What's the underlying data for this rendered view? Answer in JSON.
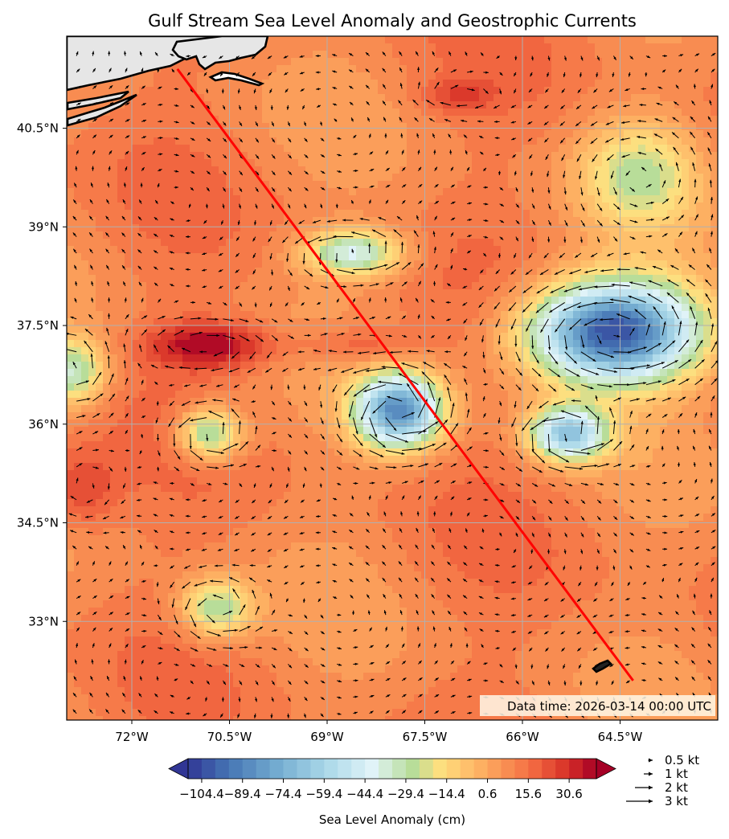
{
  "title": "Gulf Stream Sea Level Anomaly and Geostrophic Currents",
  "timestamp": "Data time: 2026-03-14 00:00 UTC",
  "map": {
    "lon_range": [
      -73.0,
      -63.0
    ],
    "lat_range": [
      31.5,
      41.9
    ],
    "x_ticks": [
      {
        "value": -72.0,
        "label": "72°W"
      },
      {
        "value": -70.5,
        "label": "70.5°W"
      },
      {
        "value": -69.0,
        "label": "69°W"
      },
      {
        "value": -67.5,
        "label": "67.5°W"
      },
      {
        "value": -66.0,
        "label": "66°W"
      },
      {
        "value": -64.5,
        "label": "64.5°W"
      }
    ],
    "y_ticks": [
      {
        "value": 40.5,
        "label": "40.5°N"
      },
      {
        "value": 39.0,
        "label": "39°N"
      },
      {
        "value": 37.5,
        "label": "37.5°N"
      },
      {
        "value": 36.0,
        "label": "36°N"
      },
      {
        "value": 34.5,
        "label": "34.5°N"
      },
      {
        "value": 33.0,
        "label": "33°N"
      }
    ],
    "track": {
      "name": "transect",
      "start": [
        -71.3,
        41.4
      ],
      "end": [
        -64.3,
        32.1
      ],
      "color": "#ff0000"
    }
  },
  "colorbar": {
    "label": "Sea Level Anomaly (cm)",
    "min": -109.4,
    "max": 40.6,
    "step": 5,
    "tick_labels": [
      {
        "value": -104.4,
        "label": "−104.4"
      },
      {
        "value": -89.4,
        "label": "−89.4"
      },
      {
        "value": -74.4,
        "label": "−74.4"
      },
      {
        "value": -59.4,
        "label": "−59.4"
      },
      {
        "value": -44.4,
        "label": "−44.4"
      },
      {
        "value": -29.4,
        "label": "−29.4"
      },
      {
        "value": -14.4,
        "label": "−14.4"
      },
      {
        "value": 0.6,
        "label": "0.6"
      },
      {
        "value": 15.6,
        "label": "15.6"
      },
      {
        "value": 30.6,
        "label": "30.6"
      }
    ]
  },
  "vector_legend": [
    {
      "speed_kt": 0.5,
      "label": "0.5 kt"
    },
    {
      "speed_kt": 1,
      "label": "1 kt"
    },
    {
      "speed_kt": 2,
      "label": "2 kt"
    },
    {
      "speed_kt": 3,
      "label": "3 kt"
    }
  ],
  "colors": {
    "land": "#e6e6e6",
    "coast": "#000000",
    "grid": "#b0b0b0",
    "stamp_bg": "#fff8e8"
  },
  "features": {
    "eddies": [
      {
        "name": "cold-core-ne",
        "lon": -64.6,
        "lat": 37.4,
        "anomaly_cm": -105,
        "rlon": 1.3,
        "rlat": 0.75
      },
      {
        "name": "cold-core-center",
        "lon": -67.9,
        "lat": 36.2,
        "anomaly_cm": -85,
        "rlon": 0.65,
        "rlat": 0.55
      },
      {
        "name": "cold-core-se",
        "lon": -65.3,
        "lat": 35.85,
        "anomaly_cm": -65,
        "rlon": 0.6,
        "rlat": 0.4
      },
      {
        "name": "cold-core-w",
        "lon": -70.8,
        "lat": 35.85,
        "anomaly_cm": -38,
        "rlon": 0.5,
        "rlat": 0.4
      },
      {
        "name": "cold-far-west",
        "lon": -72.9,
        "lat": 36.8,
        "anomaly_cm": -35,
        "rlon": 0.5,
        "rlat": 0.5
      },
      {
        "name": "cold-north-slope",
        "lon": -68.6,
        "lat": 38.6,
        "anomaly_cm": -40,
        "rlon": 0.75,
        "rlat": 0.35
      },
      {
        "name": "cold-south",
        "lon": -70.7,
        "lat": 33.2,
        "anomaly_cm": -30,
        "rlon": 0.55,
        "rlat": 0.45
      },
      {
        "name": "warm-core-jet",
        "lon": -70.8,
        "lat": 37.2,
        "anomaly_cm": 42,
        "rlon": 0.9,
        "rlat": 0.35
      },
      {
        "name": "warm-jet-east",
        "lon": -68.5,
        "lat": 37.2,
        "anomaly_cm": 25,
        "rlon": 0.95,
        "rlat": 0.3
      },
      {
        "name": "warm-far-west",
        "lon": -72.8,
        "lat": 35.0,
        "anomaly_cm": 28,
        "rlon": 0.6,
        "rlat": 0.6
      },
      {
        "name": "warm-north",
        "lon": -67.0,
        "lat": 41.0,
        "anomaly_cm": 24,
        "rlon": 0.55,
        "rlat": 0.25
      },
      {
        "name": "cool-northeast",
        "lon": -64.2,
        "lat": 39.8,
        "anomaly_cm": -22,
        "rlon": 0.9,
        "rlat": 0.8
      }
    ]
  }
}
